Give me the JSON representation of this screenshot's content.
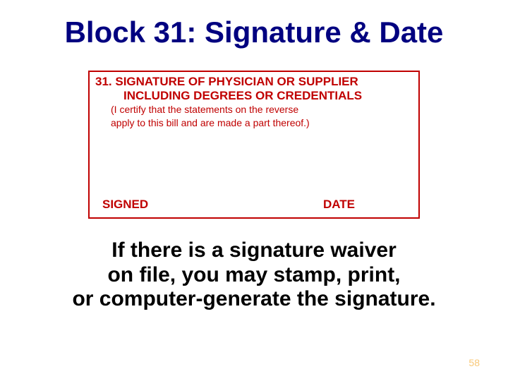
{
  "title": "Block 31: Signature & Date",
  "formBox": {
    "headingLine1": "31. SIGNATURE OF PHYSICIAN OR SUPPLIER",
    "headingLine2": "INCLUDING DEGREES OR CREDENTIALS",
    "certLine1": "(I certify that the statements on the reverse",
    "certLine2": "apply to this bill and are made a part thereof.)",
    "signedLabel": "SIGNED",
    "dateLabel": "DATE"
  },
  "explanatory": {
    "line1": "If there is a signature waiver",
    "line2": "on file, you may stamp, print,",
    "line3": "or computer-generate the signature."
  },
  "pageNumber": "58",
  "colors": {
    "titleColor": "#000080",
    "formColor": "#c00000",
    "textColor": "#000000",
    "pageNumColor": "#f8c878",
    "background": "#ffffff"
  }
}
